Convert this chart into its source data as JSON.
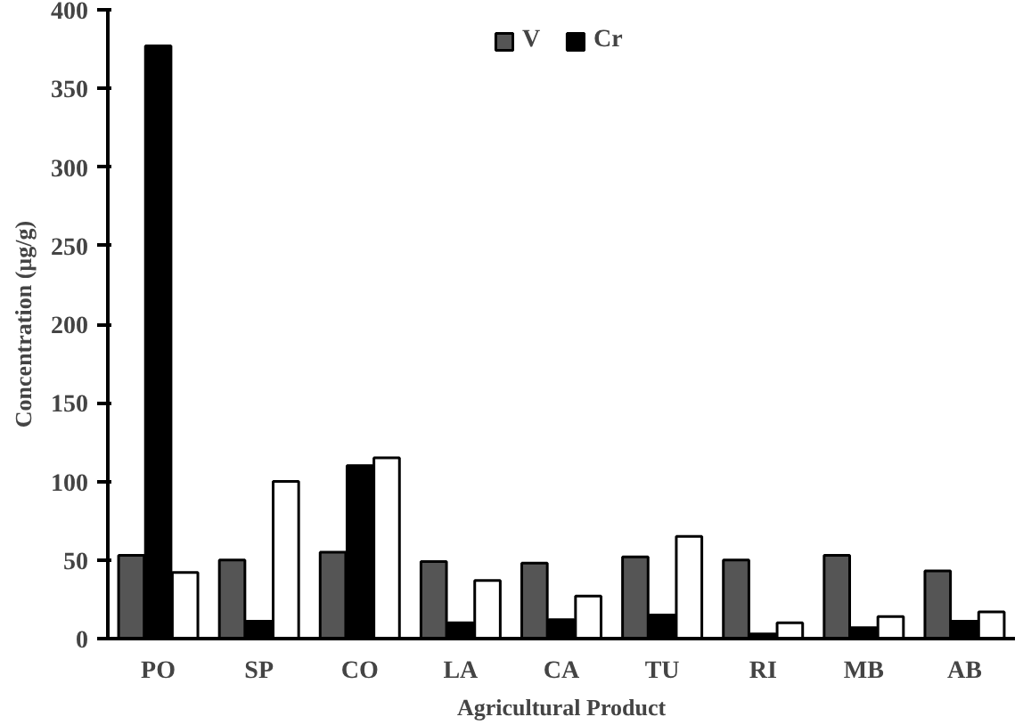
{
  "chart_data": {
    "type": "bar",
    "xlabel": "Agricultural Product",
    "ylabel": "Concentration (µg/g)",
    "categories": [
      "PO",
      "SP",
      "CO",
      "LA",
      "CA",
      "TU",
      "RI",
      "MB",
      "AB"
    ],
    "series": [
      {
        "name": "V",
        "color": "#555555",
        "values": [
          53,
          50,
          55,
          49,
          48,
          52,
          50,
          53,
          43
        ]
      },
      {
        "name": "Cr",
        "color": "#000000",
        "values": [
          377,
          11,
          110,
          10,
          12,
          15,
          3,
          7,
          11
        ]
      },
      {
        "color": "#ffffff",
        "values": [
          42,
          100,
          115,
          37,
          27,
          65,
          10,
          14,
          17
        ]
      }
    ],
    "ylim": [
      0,
      400
    ],
    "yticks": [
      0,
      50,
      100,
      150,
      200,
      250,
      300,
      350,
      400
    ],
    "grid": false,
    "legend": "top"
  }
}
